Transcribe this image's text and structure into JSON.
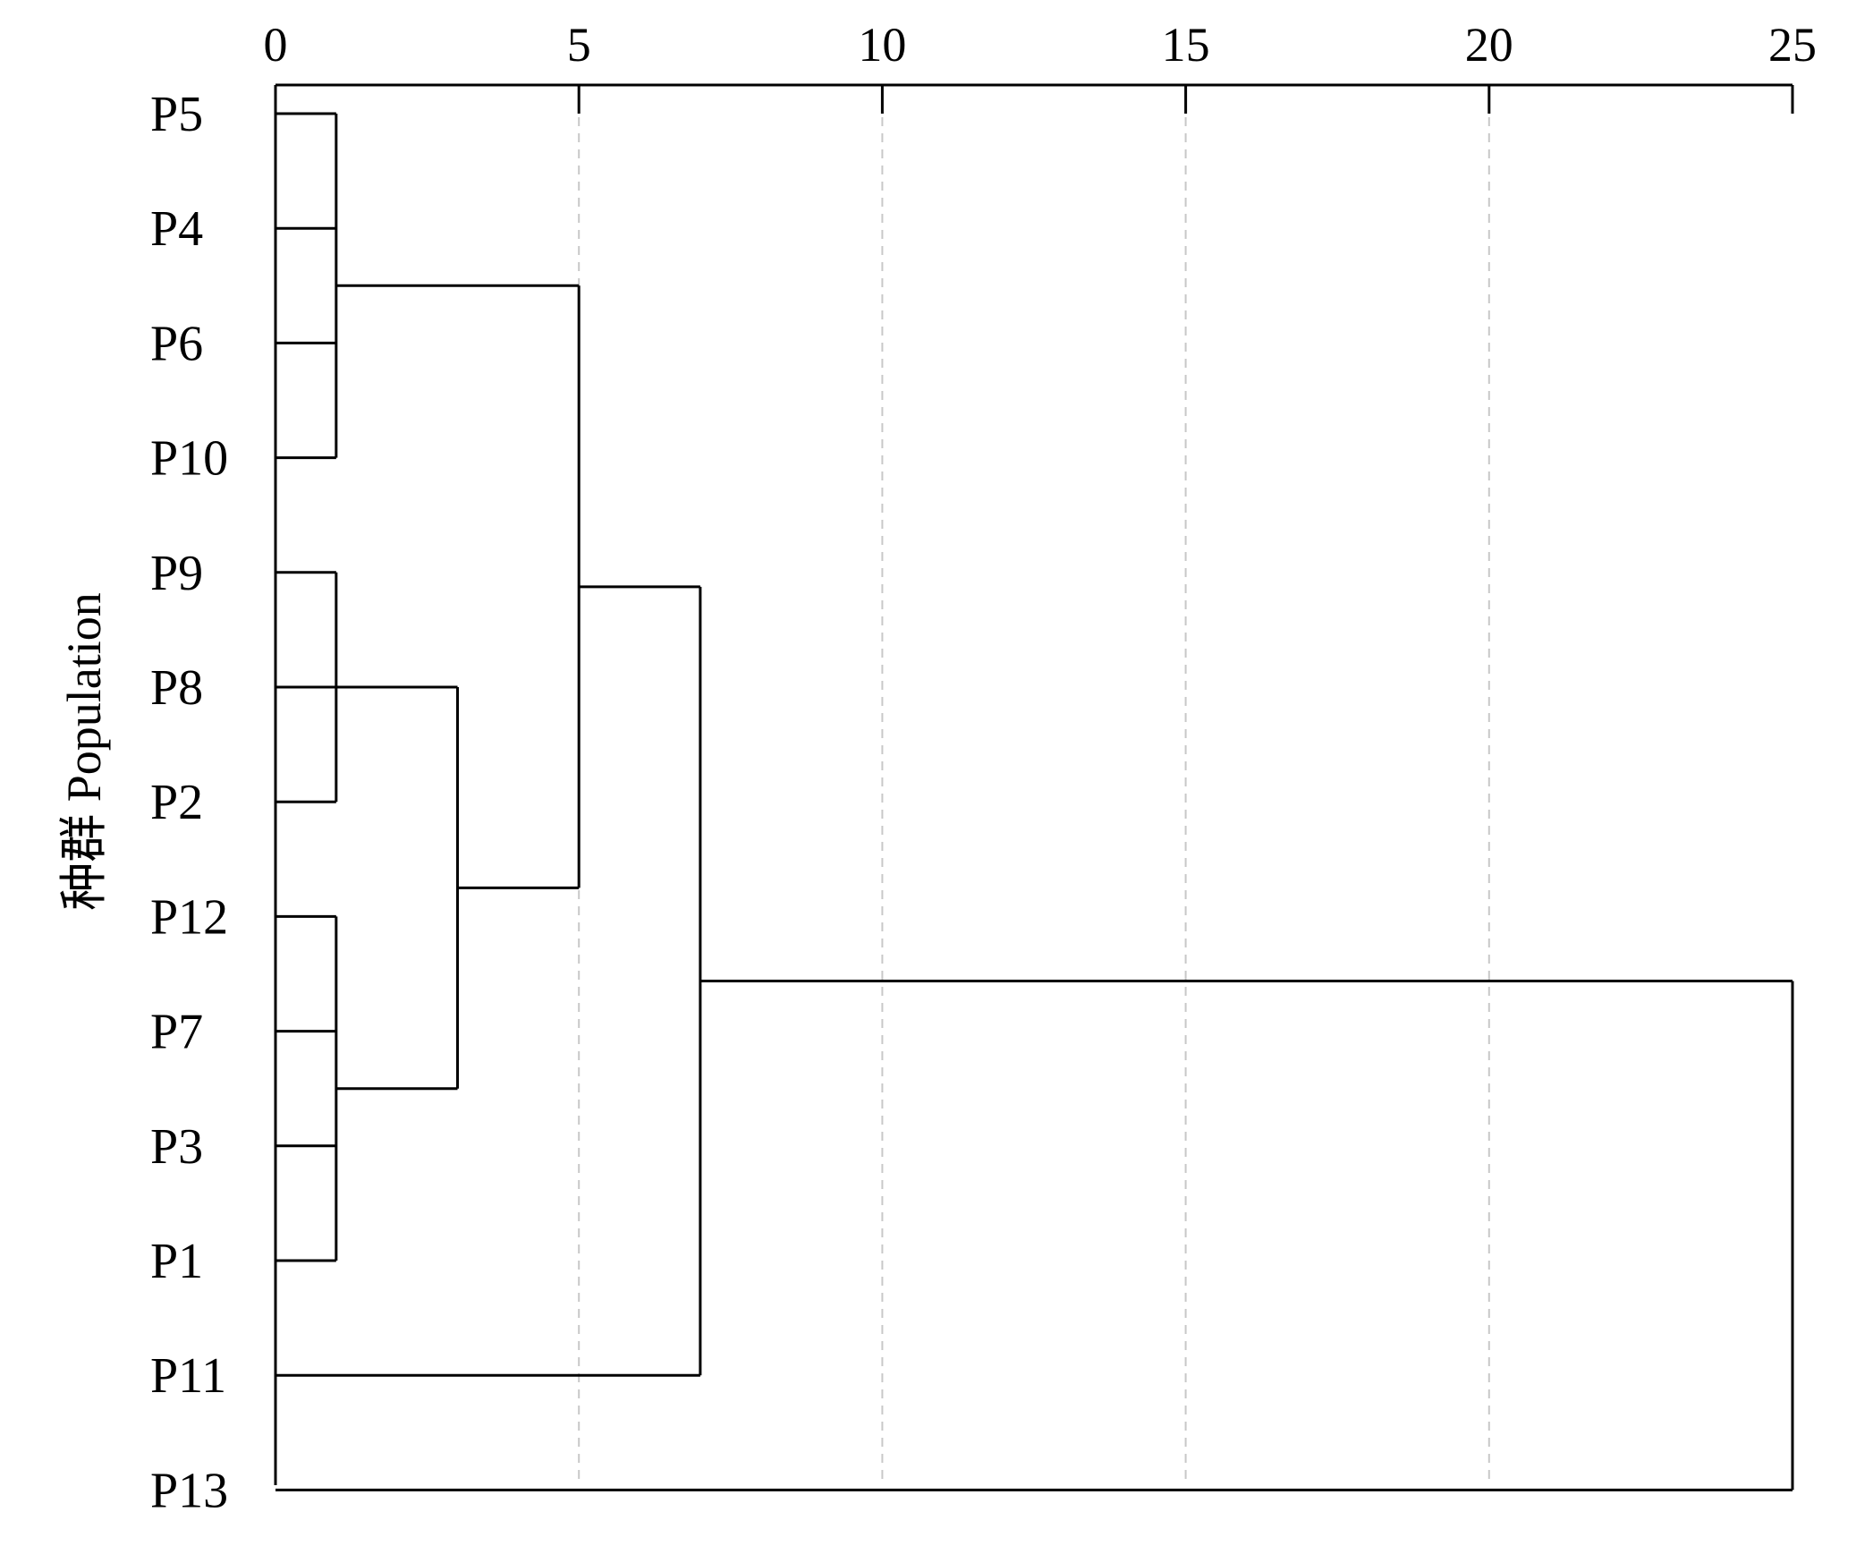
{
  "chart_data": {
    "type": "dendrogram",
    "ylabel": "种群 Population",
    "xlim": [
      0,
      25
    ],
    "x_ticks": [
      "0",
      "5",
      "10",
      "15",
      "20",
      "25"
    ],
    "x_tick_values": [
      0,
      5,
      10,
      15,
      20,
      25
    ],
    "grid": "vertical dashed",
    "leaves": [
      "P5",
      "P4",
      "P6",
      "P10",
      "P9",
      "P8",
      "P2",
      "P12",
      "P7",
      "P3",
      "P1",
      "P11",
      "P13"
    ],
    "merges": [
      {
        "children": [
          "P5",
          "P4",
          "P6",
          "P10"
        ],
        "height": 1
      },
      {
        "children": [
          "P9",
          "P8",
          "P2"
        ],
        "height": 1
      },
      {
        "children": [
          "P12",
          "P7",
          "P3",
          "P1"
        ],
        "height": 1
      },
      {
        "children": [
          "P9-P8-P2",
          "P12-P7-P3-P1"
        ],
        "height": 3
      },
      {
        "children": [
          "P5-P4-P6-P10",
          "P9-P8-P2-P12-P7-P3-P1"
        ],
        "height": 5
      },
      {
        "children": [
          "P5-...-P1",
          "P11"
        ],
        "height": 7
      },
      {
        "children": [
          "P5-...-P11",
          "P13"
        ],
        "height": 25
      }
    ]
  }
}
